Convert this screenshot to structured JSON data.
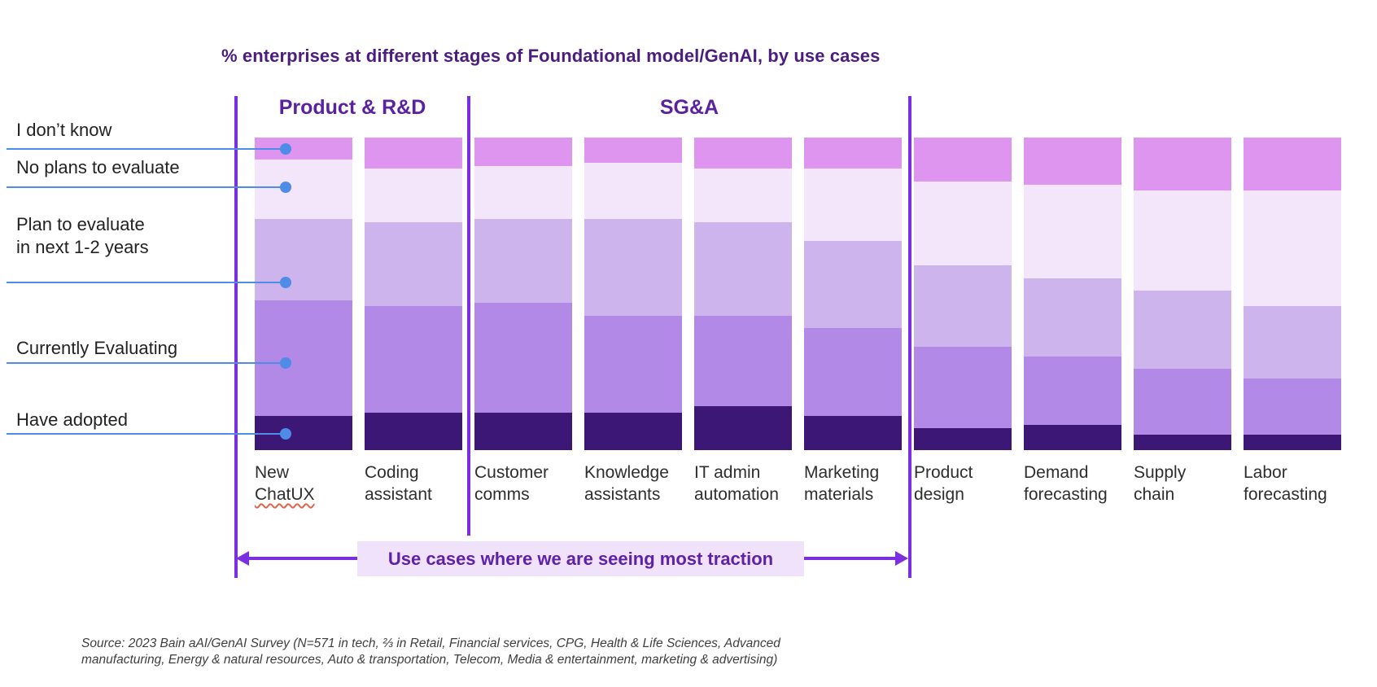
{
  "title": "% enterprises at different stages of Foundational model/GenAI, by use cases",
  "section_headers": [
    {
      "label": "Product & R&D"
    },
    {
      "label": "SG&A"
    }
  ],
  "legend": {
    "items": [
      {
        "lines": [
          "I don’t know"
        ]
      },
      {
        "lines": [
          "No plans to evaluate"
        ]
      },
      {
        "lines": [
          "Plan to evaluate",
          "in next 1-2 years"
        ]
      },
      {
        "lines": [
          "Currently Evaluating"
        ]
      },
      {
        "lines": [
          "Have adopted"
        ]
      }
    ]
  },
  "chart_data": {
    "type": "bar",
    "subtype": "stacked-100pct-vertical",
    "title": "% enterprises at different stages of Foundational model/GenAI, by use cases",
    "unit": "%",
    "ylim": [
      0,
      100
    ],
    "grid": false,
    "legend_position": "left-callouts",
    "categories": [
      "New ChatUX",
      "Coding assistant",
      "Customer comms",
      "Knowledge assistants",
      "IT admin automation",
      "Marketing materials",
      "Product design",
      "Demand forecasting",
      "Supply chain",
      "Labor forecasting"
    ],
    "groups": [
      {
        "label": "Product & R&D",
        "categories": [
          "New ChatUX",
          "Coding assistant"
        ]
      },
      {
        "label": "SG&A",
        "categories": [
          "Customer comms",
          "Knowledge assistants",
          "IT admin automation",
          "Marketing materials"
        ]
      }
    ],
    "stack_order": "top-to-bottom",
    "series": [
      {
        "name": "I don’t know",
        "color": "#DE95EF",
        "values": [
          7,
          10,
          9,
          8,
          10,
          10,
          14,
          15,
          17,
          17
        ]
      },
      {
        "name": "No plans to evaluate",
        "color": "#F3E6FA",
        "values": [
          19,
          17,
          17,
          18,
          17,
          23,
          27,
          30,
          32,
          37
        ]
      },
      {
        "name": "Plan to evaluate in next 1-2 years",
        "color": "#CDB4ED",
        "values": [
          26,
          27,
          27,
          31,
          30,
          28,
          26,
          25,
          25,
          23
        ]
      },
      {
        "name": "Currently Evaluating",
        "color": "#B389E8",
        "values": [
          37,
          34,
          35,
          31,
          29,
          28,
          26,
          22,
          21,
          18
        ]
      },
      {
        "name": "Have adopted",
        "color": "#3C1775",
        "values": [
          11,
          12,
          12,
          12,
          14,
          11,
          7,
          8,
          5,
          5
        ]
      }
    ],
    "annotation": "Use cases where we are seeing most traction"
  },
  "misspelling_marker": {
    "category": "New ChatUX",
    "word": "ChatUX"
  },
  "traction": {
    "label": "Use cases where we are seeing most traction"
  },
  "source": {
    "line1": "Source: 2023 Bain aAI/GenAI Survey (N=571 in tech, ⅔ in Retail, Financial services, CPG, Health & Life Sciences, Advanced",
    "line2": "manufacturing, Energy & natural resources, Auto & transportation, Telecom, Media & entertainment, marketing & advertising)"
  },
  "colors": {
    "divider_line": "#7B2FE0",
    "arrow": "#7B2FE0",
    "callout_line": "#4E8CE8",
    "title_text": "#4A1D7E",
    "section_header_text": "#5A21A0",
    "traction_text": "#5E21A8",
    "traction_background": "#EFE2FA",
    "axis_label_text": "#2E2E2E",
    "source_text": "#3E3E3E",
    "spellcheck_squiggle": "#E0634B"
  }
}
